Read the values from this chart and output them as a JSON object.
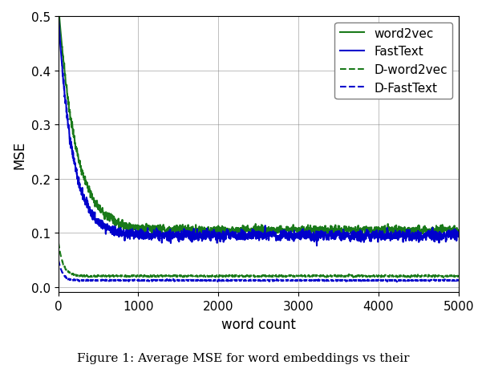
{
  "title": "",
  "xlabel": "word count",
  "ylabel": "MSE",
  "xlim": [
    0,
    5000
  ],
  "ylim": [
    -0.01,
    0.5
  ],
  "yticks": [
    0.0,
    0.1,
    0.2,
    0.3,
    0.4,
    0.5
  ],
  "xticks": [
    0,
    1000,
    2000,
    3000,
    4000,
    5000
  ],
  "caption": "Figure 1: Average MSE for word embeddings vs their",
  "series": [
    {
      "label": "word2vec",
      "color": "#1a7a1a",
      "linestyle": "solid",
      "lw": 1.5
    },
    {
      "label": "FastText",
      "color": "#0000cc",
      "linestyle": "solid",
      "lw": 1.5
    },
    {
      "label": "D-word2vec",
      "color": "#1a7a1a",
      "linestyle": "dashed",
      "lw": 1.5
    },
    {
      "label": "D-FastText",
      "color": "#0000cc",
      "linestyle": "dashed",
      "lw": 1.5
    }
  ],
  "grid": true,
  "legend_fontsize": 11,
  "axis_label_fontsize": 12,
  "tick_fontsize": 11,
  "figsize": [
    6.06,
    4.56
  ],
  "dpi": 100
}
